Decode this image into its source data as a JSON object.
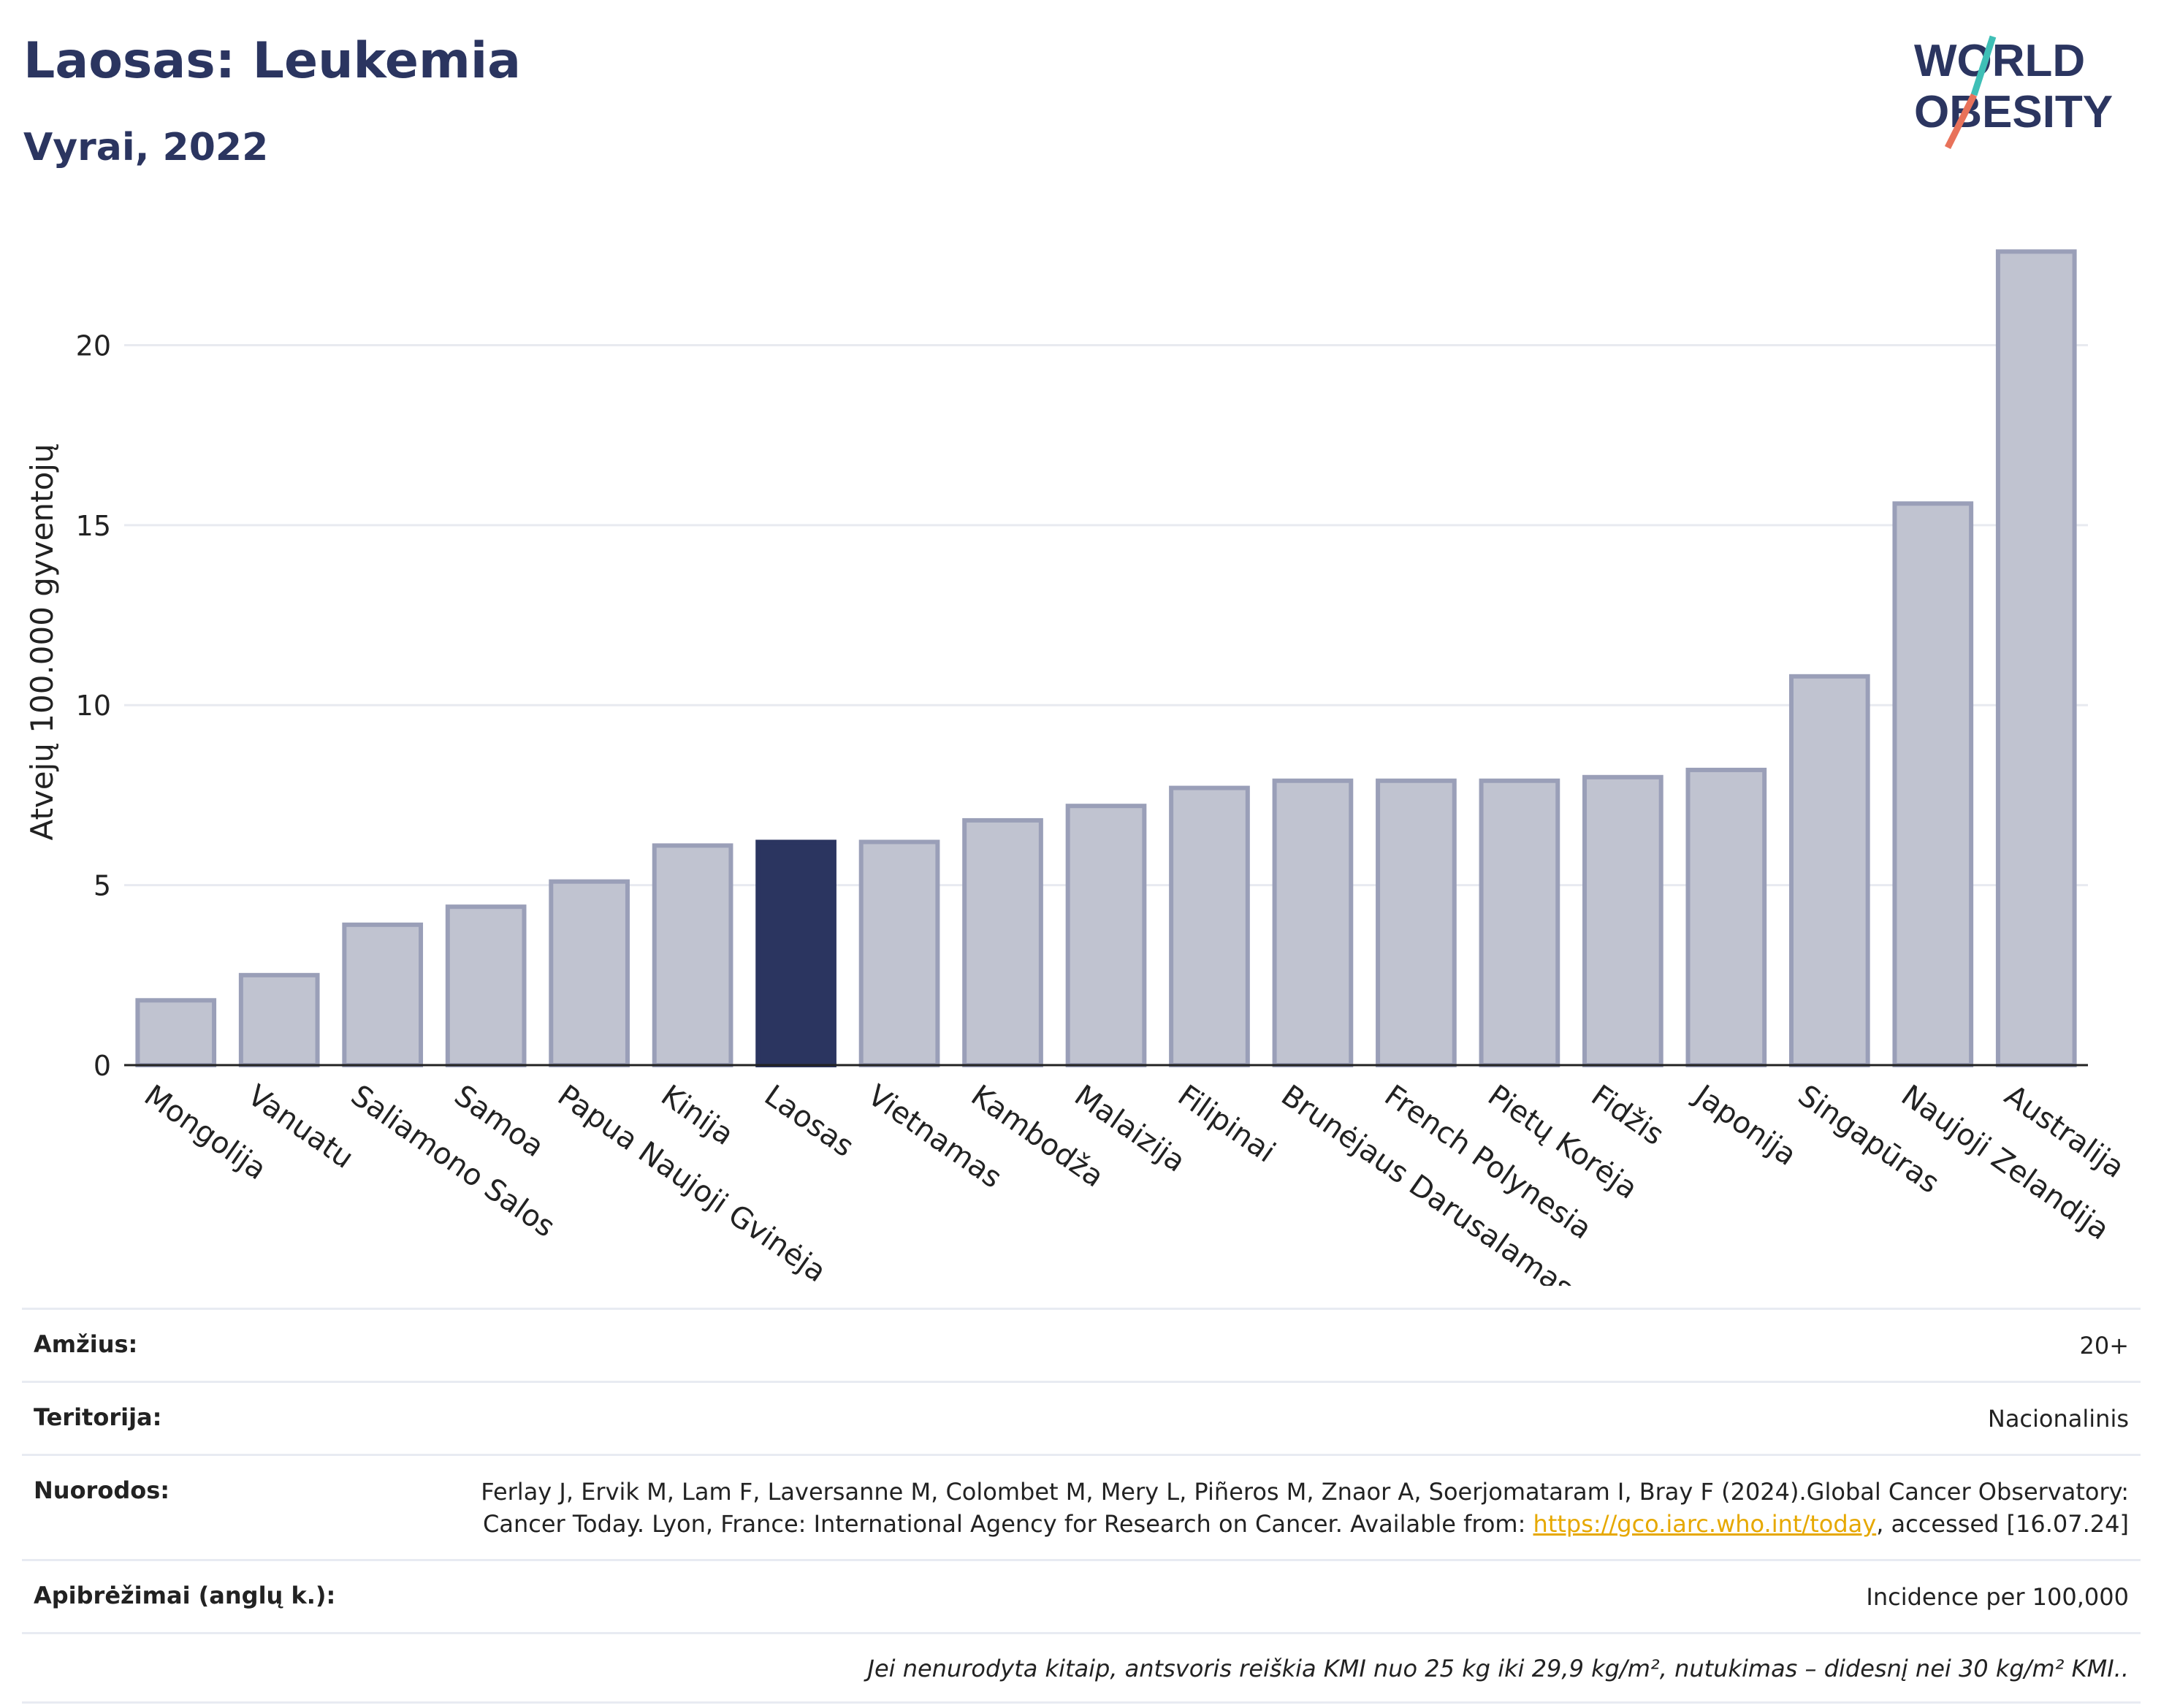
{
  "header": {
    "title": "Laosas: Leukemia",
    "subtitle": "Vyrai, 2022"
  },
  "logo": {
    "line1": "WORLD",
    "line2": "OBESITY"
  },
  "colors": {
    "bar": "#c0c3d0",
    "bar_border": "#9a9fb8",
    "highlight": "#2b3560",
    "title": "#2b3560",
    "grid": "#e8eaf0"
  },
  "chart_data": {
    "type": "bar",
    "ylabel": "Atvejų 100.000 gyventojų",
    "ylim": [
      0,
      23.5
    ],
    "yticks": [
      0,
      5,
      10,
      15,
      20
    ],
    "grid": true,
    "highlight": "Laosas",
    "categories": [
      "Mongolija",
      "Vanuatu",
      "Saliamono Salos",
      "Samoa",
      "Papua Naujoji Gvinėja",
      "Kinija",
      "Laosas",
      "Vietnamas",
      "Kambodža",
      "Malaizija",
      "Filipinai",
      "Brunėjaus Darusalamas",
      "French Polynesia",
      "Pietų Korėja",
      "Fidžis",
      "Japonija",
      "Singapūras",
      "Naujoji Zelandija",
      "Australija"
    ],
    "values": [
      1.8,
      2.5,
      3.9,
      4.4,
      5.1,
      6.1,
      6.2,
      6.2,
      6.8,
      7.2,
      7.7,
      7.9,
      7.9,
      7.9,
      8.0,
      8.2,
      10.8,
      15.6,
      22.6
    ]
  },
  "meta": {
    "age_label": "Amžius:",
    "age_value": "20+",
    "territory_label": "Teritorija:",
    "territory_value": "Nacionalinis",
    "refs_label": "Nuorodos:",
    "refs_text1": "Ferlay J, Ervik M, Lam F, Laversanne M, Colombet M, Mery L, Piñeros M, Znaor A, Soerjomataram I, Bray F (2024).Global Cancer Observatory: Cancer Today. Lyon, France: International Agency for Research on Cancer. Available from: ",
    "refs_link": "https://gco.iarc.who.int/today",
    "refs_text2": ", accessed [16.07.24]",
    "defs_label": "Apibrėžimai (anglų k.):",
    "defs_value": "Incidence per 100,000",
    "note": "Jei nenurodyta kitaip, antsvoris reiškia KMI nuo 25 kg iki 29,9 kg/m², nutukimas – didesnį nei 30 kg/m² KMI.."
  }
}
